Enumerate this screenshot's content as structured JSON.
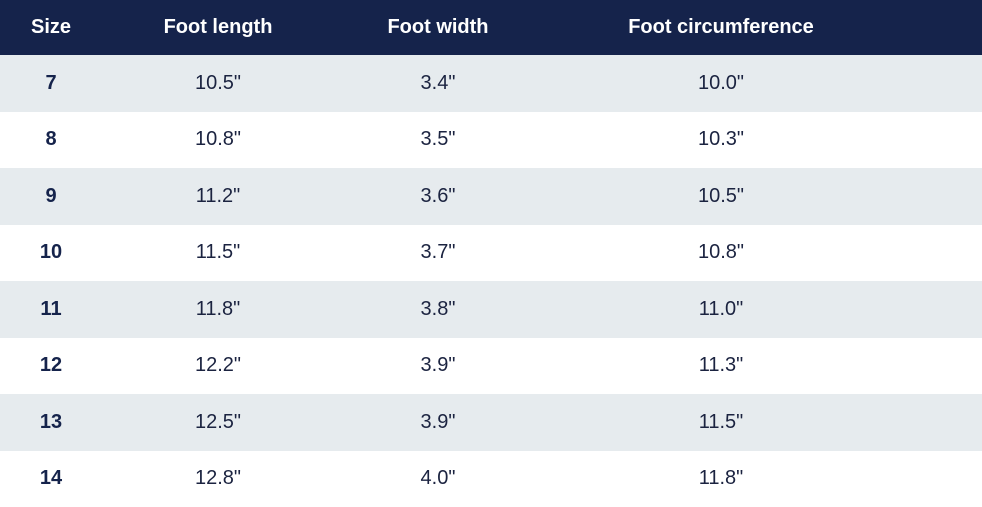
{
  "table": {
    "headers": [
      "Size",
      "Foot length",
      "Foot width",
      "Foot circumference"
    ],
    "rows": [
      {
        "size": "7",
        "length": "10.5\"",
        "width": "3.4\"",
        "circumference": "10.0\""
      },
      {
        "size": "8",
        "length": "10.8\"",
        "width": "3.5\"",
        "circumference": "10.3\""
      },
      {
        "size": "9",
        "length": "11.2\"",
        "width": "3.6\"",
        "circumference": "10.5\""
      },
      {
        "size": "10",
        "length": "11.5\"",
        "width": "3.7\"",
        "circumference": "10.8\""
      },
      {
        "size": "11",
        "length": "11.8\"",
        "width": "3.8\"",
        "circumference": "11.0\""
      },
      {
        "size": "12",
        "length": "12.2\"",
        "width": "3.9\"",
        "circumference": "11.3\""
      },
      {
        "size": "13",
        "length": "12.5\"",
        "width": "3.9\"",
        "circumference": "11.5\""
      },
      {
        "size": "14",
        "length": "12.8\"",
        "width": "4.0\"",
        "circumference": "11.8\""
      }
    ]
  },
  "colors": {
    "header_bg": "#15234b",
    "row_alt_bg": "#e6ebee",
    "text": "#1b2340"
  }
}
